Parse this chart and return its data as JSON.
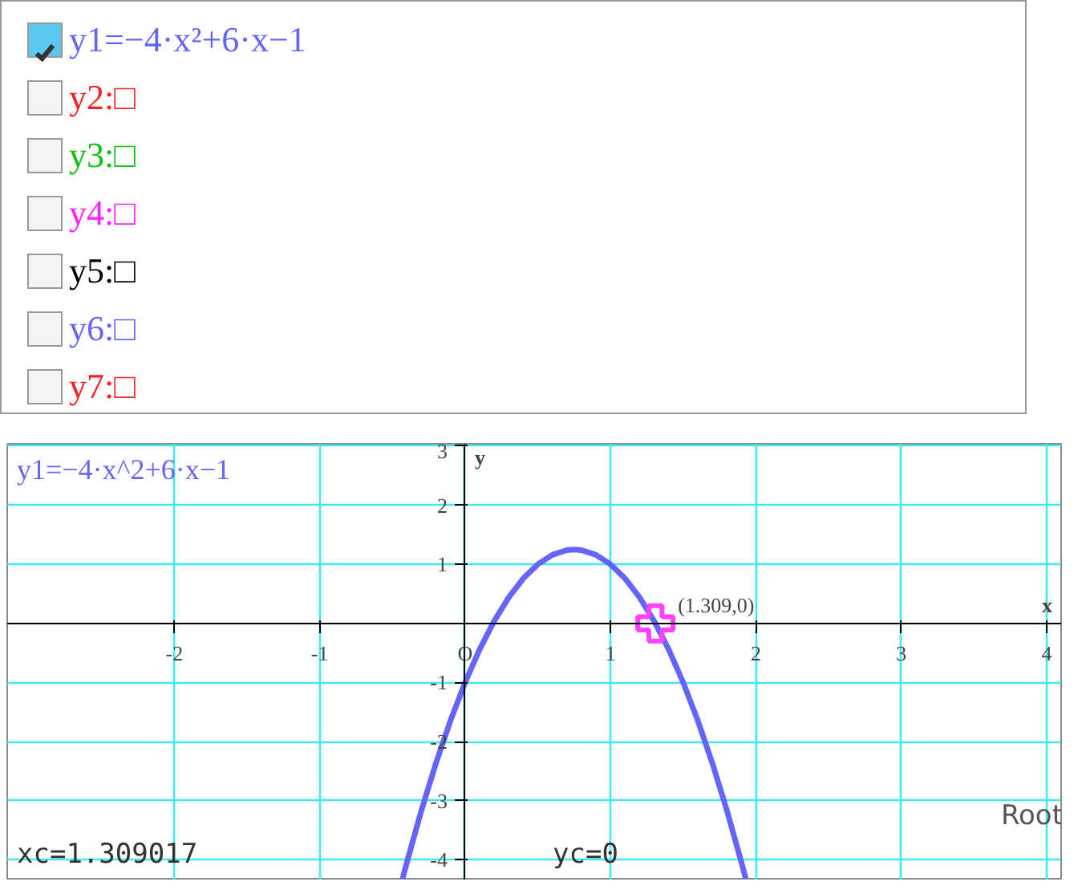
{
  "chart_data": {
    "type": "line",
    "title": "y1=−4·x^2+6·x−1",
    "xlabel": "x",
    "ylabel": "y",
    "xlim": [
      -3.15,
      4.1
    ],
    "ylim": [
      -4.35,
      3.04
    ],
    "xticks": [
      -2,
      -1,
      {
        "value": 0,
        "label": "O"
      },
      1,
      2,
      3,
      4
    ],
    "yticks": [
      -4,
      -3,
      -2,
      -1,
      1,
      2,
      3
    ],
    "grid": true,
    "series": [
      {
        "color": "#6464ff",
        "x": [
          -0.43,
          -0.4,
          -0.3,
          -0.2,
          -0.1,
          0,
          0.1,
          0.2,
          0.3,
          0.4,
          0.5,
          0.6,
          0.7,
          0.75,
          0.8,
          0.9,
          1.0,
          1.1,
          1.2,
          1.3,
          1.4,
          1.5,
          1.6,
          1.7,
          1.8,
          1.9,
          1.93
        ],
        "values": [
          -4.32,
          -4.04,
          -3.16,
          -2.36,
          -1.64,
          -1,
          -0.44,
          0.04,
          0.44,
          0.76,
          1,
          1.16,
          1.24,
          1.25,
          1.24,
          1.16,
          1,
          0.76,
          0.44,
          0.04,
          -0.44,
          -1,
          -1.64,
          -2.36,
          -3.16,
          -4.04,
          -4.32
        ]
      },
      {
        "type": "scatter",
        "marker": "cross",
        "color": "#ff40ff",
        "x": [
          1.309
        ],
        "values": [
          0
        ]
      }
    ],
    "annotations": [
      "y1=−4·x²+6·x−1",
      "y2:□",
      "y3:□",
      "y4:□",
      "y5:□",
      "y6:□",
      "y7:□",
      {
        "text": "(1.309,0)",
        "x": 1.309,
        "y": 0
      },
      "xc=1.309017",
      "yc=0",
      "Root"
    ]
  }
}
